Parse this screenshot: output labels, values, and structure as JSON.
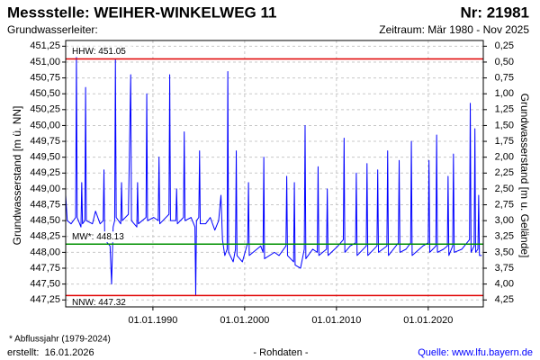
{
  "chart_data": {
    "type": "line",
    "title": "Messstelle: WEIHER-WINKELWEG 11",
    "number": "Nr: 21981",
    "subtitle": "Grundwasserleiter:",
    "period": "Zeitraum: Mär 1980 - Nov 2025",
    "ylabel": "Grundwasserstand [m ü. NN]",
    "y2label": "Grundwasserstand [m u. Gelände]",
    "footnote": "* Abflussjahr (1979-2024)",
    "created": "erstellt:  16.01.2026",
    "data_note": "- Rohdaten -",
    "source": "Quelle: www.lfu.bayern.de",
    "color": "#0000ff",
    "grid": true,
    "reference_lines": [
      {
        "label": "HHW: 451.05",
        "value": 451.05,
        "color": "#e00000"
      },
      {
        "label": "MW*: 448.13",
        "value": 448.13,
        "color": "#009000"
      },
      {
        "label": "NNW: 447.32",
        "value": 447.32,
        "color": "#e00000"
      }
    ],
    "xlim": [
      "1980-07-01",
      "2026-01-01"
    ],
    "xticks": [
      {
        "value": "1990-01-01",
        "label": "01.01.1990"
      },
      {
        "value": "2000-01-01",
        "label": "01.01.2000"
      },
      {
        "value": "2010-01-01",
        "label": "01.01.2010"
      },
      {
        "value": "2020-01-01",
        "label": "01.01.2020"
      }
    ],
    "ylim": [
      447.14,
      451.34
    ],
    "yticks": [
      {
        "value": 451.25,
        "label": "451,25"
      },
      {
        "value": 451,
        "label": "451,00"
      },
      {
        "value": 450.75,
        "label": "450,75"
      },
      {
        "value": 450.5,
        "label": "450,50"
      },
      {
        "value": 450.25,
        "label": "450,25"
      },
      {
        "value": 450,
        "label": "450,00"
      },
      {
        "value": 449.75,
        "label": "449,75"
      },
      {
        "value": 449.5,
        "label": "449,50"
      },
      {
        "value": 449.25,
        "label": "449,25"
      },
      {
        "value": 449,
        "label": "449,00"
      },
      {
        "value": 448.75,
        "label": "448,75"
      },
      {
        "value": 448.5,
        "label": "448,50"
      },
      {
        "value": 448.25,
        "label": "448,25"
      },
      {
        "value": 448,
        "label": "448,00"
      },
      {
        "value": 447.75,
        "label": "447,75"
      },
      {
        "value": 447.5,
        "label": "447,50"
      },
      {
        "value": 447.25,
        "label": "447,25"
      }
    ],
    "y2lim": [
      4.36,
      0.16
    ],
    "y2ticks": [
      {
        "value": 0.25,
        "label": "0,25"
      },
      {
        "value": 0.5,
        "label": "0,50"
      },
      {
        "value": 0.75,
        "label": "0,75"
      },
      {
        "value": 1,
        "label": "1,00"
      },
      {
        "value": 1.25,
        "label": "1,25"
      },
      {
        "value": 1.5,
        "label": "1,50"
      },
      {
        "value": 1.75,
        "label": "1,75"
      },
      {
        "value": 2,
        "label": "2,00"
      },
      {
        "value": 2.25,
        "label": "2,25"
      },
      {
        "value": 2.5,
        "label": "2,50"
      },
      {
        "value": 2.75,
        "label": "2,75"
      },
      {
        "value": 3,
        "label": "3,00"
      },
      {
        "value": 3.25,
        "label": "3,25"
      },
      {
        "value": 3.5,
        "label": "3,50"
      },
      {
        "value": 3.75,
        "label": "3,75"
      },
      {
        "value": 4,
        "label": "4,00"
      },
      {
        "value": 4.25,
        "label": "4,25"
      }
    ],
    "x": [
      "1980-07-01",
      "1980-09-01",
      "1981-02-01",
      "1981-08-01",
      "1981-09-01",
      "1981-10-01",
      "1982-03-01",
      "1982-04-01",
      "1982-05-01",
      "1982-08-01",
      "1982-09-01",
      "1982-10-01",
      "1983-06-01",
      "1983-10-01",
      "1984-04-01",
      "1984-08-01",
      "1984-09-01",
      "1984-10-01",
      "1985-05-01",
      "1985-07-01",
      "1985-09-01",
      "1985-11-01",
      "1985-12-01",
      "1986-01-01",
      "1986-07-01",
      "1986-08-01",
      "1986-09-01",
      "1987-05-01",
      "1987-08-01",
      "1987-09-01",
      "1988-04-01",
      "1988-05-01",
      "1988-06-01",
      "1989-04-01",
      "1989-05-01",
      "1989-06-01",
      "1990-02-01",
      "1990-08-01",
      "1990-09-01",
      "1990-10-01",
      "1991-10-01",
      "1991-11-01",
      "1991-12-01",
      "1992-07-01",
      "1992-08-01",
      "1992-09-01",
      "1993-05-01",
      "1993-06-01",
      "1993-07-01",
      "1994-03-01",
      "1994-08-01",
      "1994-09-01",
      "1994-10-01",
      "1995-01-01",
      "1995-02-01",
      "1995-03-01",
      "1995-10-01",
      "1996-04-01",
      "1996-10-01",
      "1997-03-01",
      "1997-06-01",
      "1997-08-01",
      "1997-11-01",
      "1998-02-01",
      "1998-03-01",
      "1998-04-01",
      "1998-10-01",
      "1999-01-01",
      "1999-02-01",
      "1999-03-01",
      "1999-10-01",
      "2000-05-01",
      "2000-06-01",
      "2000-07-01",
      "2001-05-01",
      "2001-10-01",
      "2002-01-01",
      "2002-02-01",
      "2002-03-01",
      "2003-04-01",
      "2003-10-01",
      "2004-07-01",
      "2004-08-01",
      "2004-09-01",
      "2005-05-01",
      "2005-06-01",
      "2005-07-01",
      "2006-02-01",
      "2006-07-01",
      "2006-08-01",
      "2006-09-01",
      "2007-06-01",
      "2007-12-01",
      "2008-01-01",
      "2008-02-01",
      "2008-12-01",
      "2009-01-01",
      "2009-02-01",
      "2010-03-01",
      "2010-10-01",
      "2010-11-01",
      "2010-12-01",
      "2011-07-01",
      "2012-02-01",
      "2012-03-01",
      "2012-04-01",
      "2013-04-01",
      "2013-05-01",
      "2013-06-01",
      "2014-06-01",
      "2014-07-01",
      "2014-08-01",
      "2015-07-01",
      "2015-08-01",
      "2015-09-01",
      "2016-10-01",
      "2016-11-01",
      "2016-12-01",
      "2017-08-01",
      "2018-02-01",
      "2018-03-01",
      "2018-04-01",
      "2019-06-01",
      "2020-01-01",
      "2020-02-01",
      "2020-03-01",
      "2020-11-01",
      "2020-12-01",
      "2021-01-01",
      "2021-09-01",
      "2022-02-01",
      "2022-03-01",
      "2022-04-01",
      "2022-09-01",
      "2022-10-01",
      "2022-11-01",
      "2023-09-01",
      "2024-07-01",
      "2024-08-01",
      "2024-09-01",
      "2025-01-01",
      "2025-02-01",
      "2025-03-01",
      "2025-06-01",
      "2025-07-01",
      "2025-08-01",
      "2025-11-01"
    ],
    "values": [
      448.9,
      448.5,
      448.45,
      448.55,
      451.1,
      448.55,
      448.4,
      449.1,
      448.45,
      448.5,
      450.6,
      448.5,
      448.45,
      448.65,
      448.45,
      448.5,
      449.3,
      448.2,
      448.1,
      447.5,
      448.4,
      448.5,
      451.05,
      448.55,
      448.45,
      449.1,
      448.5,
      448.6,
      450.8,
      448.5,
      448.4,
      449.1,
      448.45,
      448.55,
      450.5,
      448.5,
      448.55,
      448.5,
      449.5,
      448.45,
      448.6,
      450.8,
      448.5,
      448.5,
      449.0,
      448.45,
      448.55,
      449.9,
      448.5,
      448.55,
      448.4,
      447.32,
      448.5,
      448.55,
      449.6,
      448.45,
      448.45,
      448.55,
      448.35,
      448.5,
      448.9,
      448.2,
      447.95,
      448.05,
      450.85,
      448.0,
      447.85,
      448.05,
      449.6,
      447.95,
      447.85,
      448.15,
      449.1,
      447.95,
      448.05,
      448.1,
      448.0,
      449.5,
      447.9,
      448.0,
      447.95,
      448.1,
      449.2,
      447.95,
      447.85,
      449.1,
      447.8,
      447.75,
      448.05,
      450.0,
      447.9,
      448.05,
      448.0,
      449.35,
      447.95,
      448.05,
      449.0,
      447.95,
      448.1,
      448.2,
      449.8,
      448.0,
      448.1,
      448.15,
      449.25,
      447.95,
      448.1,
      449.4,
      447.95,
      448.1,
      449.3,
      448.0,
      448.1,
      449.6,
      447.95,
      448.15,
      449.45,
      448.0,
      448.05,
      448.15,
      449.75,
      447.95,
      448.1,
      448.15,
      449.45,
      448.0,
      448.1,
      449.85,
      448.0,
      448.05,
      448.1,
      449.2,
      447.95,
      448.1,
      449.55,
      448.0,
      448.05,
      448.2,
      450.35,
      448.0,
      448.1,
      449.95,
      448.0,
      448.05,
      448.9,
      447.95,
      447.95
    ]
  }
}
